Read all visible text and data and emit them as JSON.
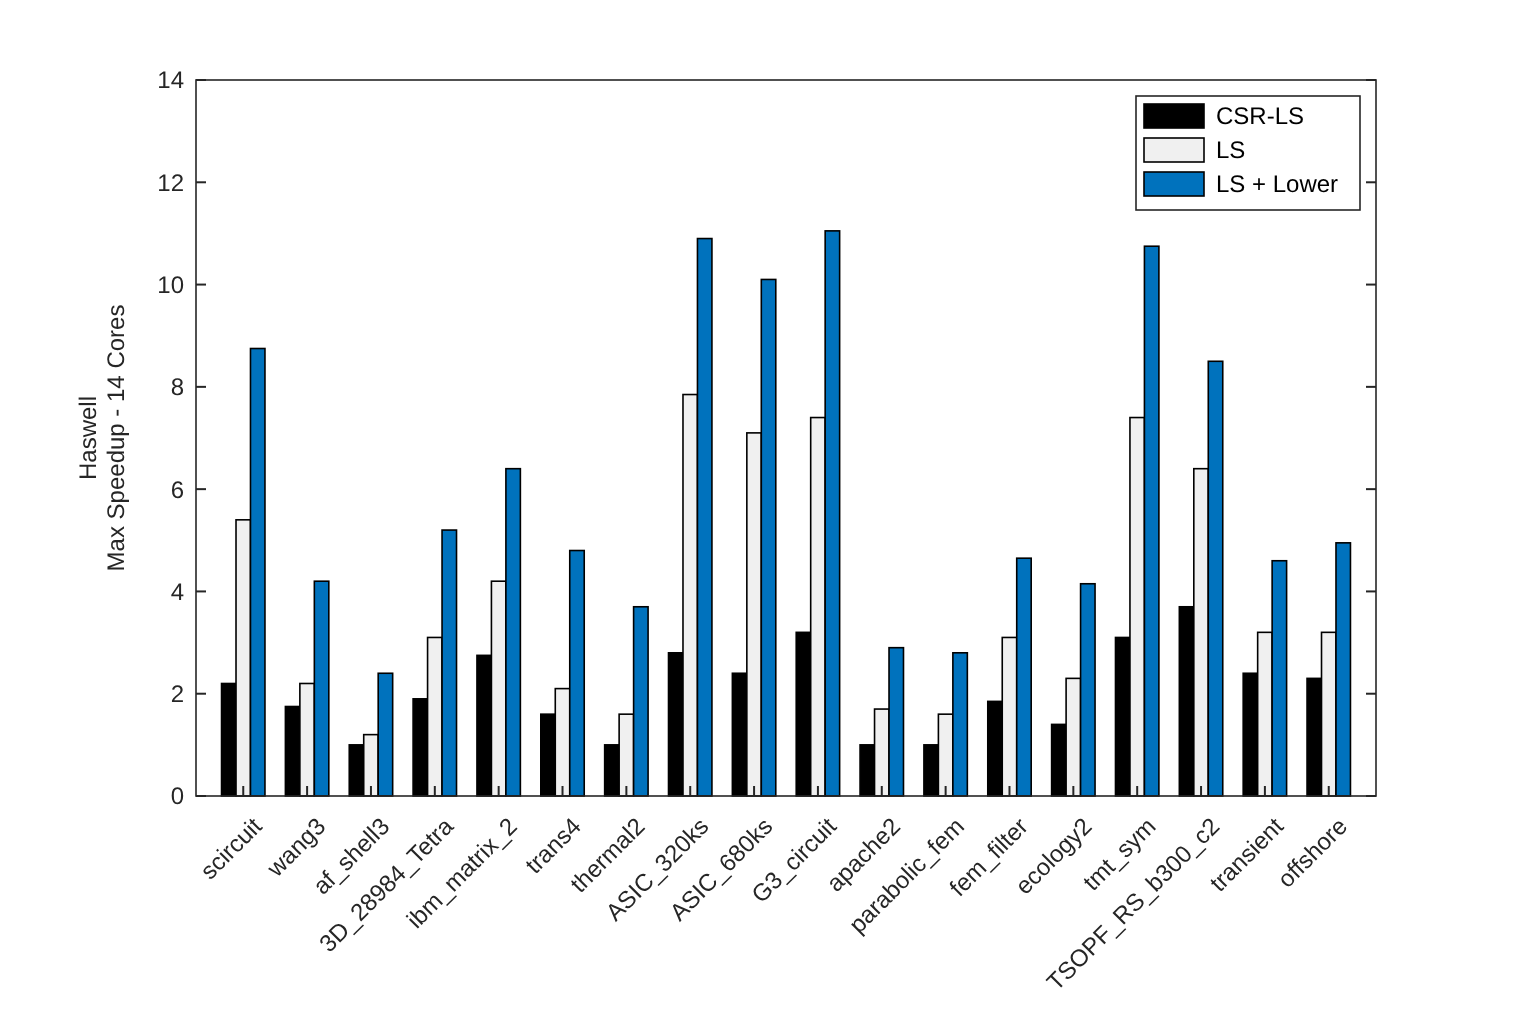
{
  "chart_data": {
    "type": "bar",
    "ylabel": "Haswell\nMax Speedup - 14 Cores",
    "categories": [
      "scircuit",
      "wang3",
      "af_shell3",
      "3D_28984_Tetra",
      "ibm_matrix_2",
      "trans4",
      "thermal2",
      "ASIC_320ks",
      "ASIC_680ks",
      "G3_circuit",
      "apache2",
      "parabolic_fem",
      "fem_filter",
      "ecology2",
      "tmt_sym",
      "TSOPF_RS_b300_c2",
      "transient",
      "offshore"
    ],
    "series": [
      {
        "name": "CSR-LS",
        "color": "#000000",
        "values": [
          2.2,
          1.75,
          1.0,
          1.9,
          2.75,
          1.6,
          1.0,
          2.8,
          2.4,
          3.2,
          1.0,
          1.0,
          1.85,
          1.4,
          3.1,
          3.7,
          2.4,
          2.3
        ]
      },
      {
        "name": "LS",
        "color": "#f0f0f0",
        "values": [
          5.4,
          2.2,
          1.2,
          3.1,
          4.2,
          2.1,
          1.6,
          7.85,
          7.1,
          7.4,
          1.7,
          1.6,
          3.1,
          2.3,
          7.4,
          6.4,
          3.2,
          3.2
        ]
      },
      {
        "name": "LS + Lower",
        "color": "#0072bd",
        "values": [
          8.75,
          4.2,
          2.4,
          5.2,
          6.4,
          4.8,
          3.7,
          10.9,
          10.1,
          11.05,
          2.9,
          2.8,
          4.65,
          4.15,
          10.75,
          8.5,
          4.6,
          4.95
        ]
      }
    ],
    "ylim": [
      0,
      14
    ],
    "yticks": [
      0,
      2,
      4,
      6,
      8,
      10,
      12,
      14
    ],
    "grid": false,
    "legend": "top right"
  }
}
